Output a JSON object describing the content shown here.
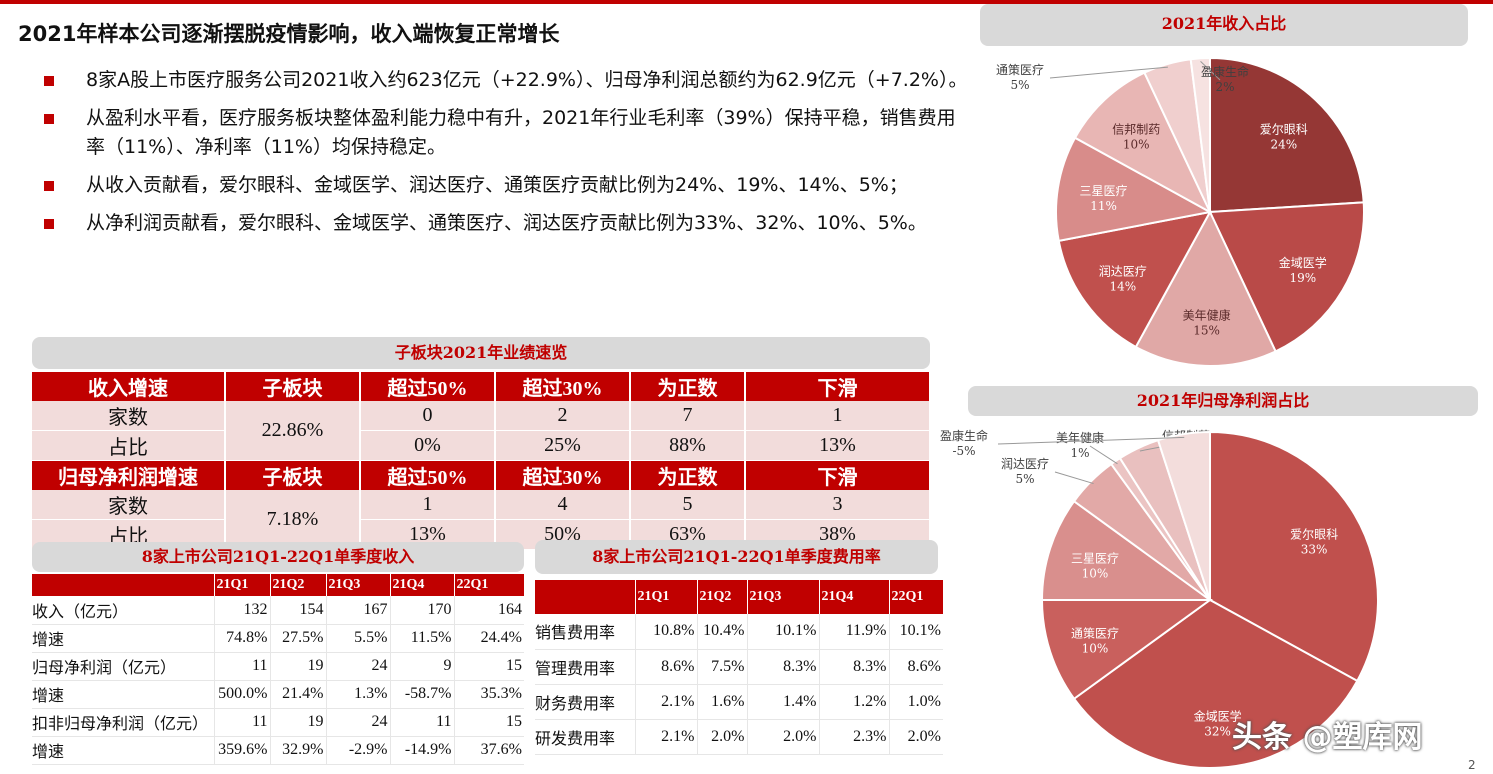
{
  "headline": "2021年样本公司逐渐摆脱疫情影响，收入端恢复正常增长",
  "bullets": [
    "8家A股上市医疗服务公司2021收入约623亿元（+22.9%）、归母净利润总额约为62.9亿元（+7.2%）。",
    "从盈利水平看，医疗服务板块整体盈利能力稳中有升，2021年行业毛利率（39%）保持平稳，销售费用率（11%）、净利率（11%）均保持稳定。",
    "从收入贡献看，爱尔眼科、金域医学、润达医疗、通策医疗贡献比例为24%、19%、14%、5%；",
    "从净利润贡献看，爱尔眼科、金域医学、通策医疗、润达医疗贡献比例为33%、32%、10%、5%。"
  ],
  "perf": {
    "title": "子板块2021年业绩速览",
    "revenue_header": [
      "收入增速",
      "子板块",
      "超过50%",
      "超过30%",
      "为正数",
      "下滑"
    ],
    "revenue_rows": [
      {
        "label": "家数",
        "values": [
          "0",
          "2",
          "7",
          "1"
        ]
      },
      {
        "label": "占比",
        "values": [
          "0%",
          "25%",
          "88%",
          "13%"
        ]
      }
    ],
    "revenue_sector": "22.86%",
    "profit_header": [
      "归母净利润增速",
      "子板块",
      "超过50%",
      "超过30%",
      "为正数",
      "下滑"
    ],
    "profit_rows": [
      {
        "label": "家数",
        "values": [
          "1",
          "4",
          "5",
          "3"
        ]
      },
      {
        "label": "占比",
        "values": [
          "13%",
          "50%",
          "63%",
          "38%"
        ]
      }
    ],
    "profit_sector": "7.18%"
  },
  "quarterly_revenue": {
    "title": "8家上市公司21Q1-22Q1单季度收入",
    "columns": [
      "",
      "21Q1",
      "21Q2",
      "21Q3",
      "21Q4",
      "22Q1"
    ],
    "rows": [
      {
        "label": "收入（亿元）",
        "values": [
          "132",
          "154",
          "167",
          "170",
          "164"
        ]
      },
      {
        "label": "增速",
        "values": [
          "74.8%",
          "27.5%",
          "5.5%",
          "11.5%",
          "24.4%"
        ]
      },
      {
        "label": "归母净利润（亿元）",
        "values": [
          "11",
          "19",
          "24",
          "9",
          "15"
        ]
      },
      {
        "label": "增速",
        "values": [
          "500.0%",
          "21.4%",
          "1.3%",
          "-58.7%",
          "35.3%"
        ]
      },
      {
        "label": "扣非归母净利润（亿元）",
        "values": [
          "11",
          "19",
          "24",
          "11",
          "15"
        ]
      },
      {
        "label": "增速",
        "values": [
          "359.6%",
          "32.9%",
          "-2.9%",
          "-14.9%",
          "37.6%"
        ]
      }
    ]
  },
  "quarterly_expense": {
    "title": "8家上市公司21Q1-22Q1单季度费用率",
    "columns": [
      "",
      "21Q1",
      "21Q2",
      "21Q3",
      "21Q4",
      "22Q1"
    ],
    "rows": [
      {
        "label": "销售费用率",
        "values": [
          "10.8%",
          "10.4%",
          "10.1%",
          "11.9%",
          "10.1%"
        ]
      },
      {
        "label": "管理费用率",
        "values": [
          "8.6%",
          "7.5%",
          "8.3%",
          "8.3%",
          "8.6%"
        ]
      },
      {
        "label": "财务费用率",
        "values": [
          "2.1%",
          "1.6%",
          "1.4%",
          "1.2%",
          "1.0%"
        ]
      },
      {
        "label": "研发费用率",
        "values": [
          "2.1%",
          "2.0%",
          "2.0%",
          "2.3%",
          "2.0%"
        ]
      }
    ]
  },
  "chart_data": [
    {
      "type": "pie",
      "title": "2021年收入占比",
      "slices": [
        {
          "name": "爱尔眼科",
          "value": 24,
          "label": "24%",
          "color": "#953735"
        },
        {
          "name": "金域医学",
          "value": 19,
          "label": "19%",
          "color": "#b94a48"
        },
        {
          "name": "美年健康",
          "value": 15,
          "label": "15%",
          "color": "#e0a8a6"
        },
        {
          "name": "润达医疗",
          "value": 14,
          "label": "14%",
          "color": "#c0504d"
        },
        {
          "name": "三星医疗",
          "value": 11,
          "label": "11%",
          "color": "#d88c8a"
        },
        {
          "name": "信邦制药",
          "value": 10,
          "label": "10%",
          "color": "#e8b6b4"
        },
        {
          "name": "通策医疗",
          "value": 5,
          "label": "5%",
          "color": "#f0cfce"
        },
        {
          "name": "盈康生命",
          "value": 2,
          "label": "2%",
          "color": "#f6e2e1"
        }
      ]
    },
    {
      "type": "pie",
      "title": "2021年归母净利润占比",
      "slices": [
        {
          "name": "爱尔眼科",
          "value": 33,
          "label": "33%",
          "color": "#c0504d"
        },
        {
          "name": "金域医学",
          "value": 32,
          "label": "32%",
          "color": "#c0504d"
        },
        {
          "name": "通策医疗",
          "value": 10,
          "label": "10%",
          "color": "#c9605d"
        },
        {
          "name": "三星医疗",
          "value": 10,
          "label": "10%",
          "color": "#d98f8d"
        },
        {
          "name": "润达医疗",
          "value": 5,
          "label": "5%",
          "color": "#e2a9a7"
        },
        {
          "name": "美年健康",
          "value": 1,
          "label": "1%",
          "color": "#ebc4c3"
        },
        {
          "name": "信邦制药",
          "value": 4,
          "label": "4%",
          "color": "#e9c0bf"
        },
        {
          "name": "盈康生命",
          "value": -5,
          "label": "-5%",
          "color": "#f3dddc"
        }
      ]
    }
  ],
  "watermark": "头条 @塑库网",
  "page_number": "2"
}
